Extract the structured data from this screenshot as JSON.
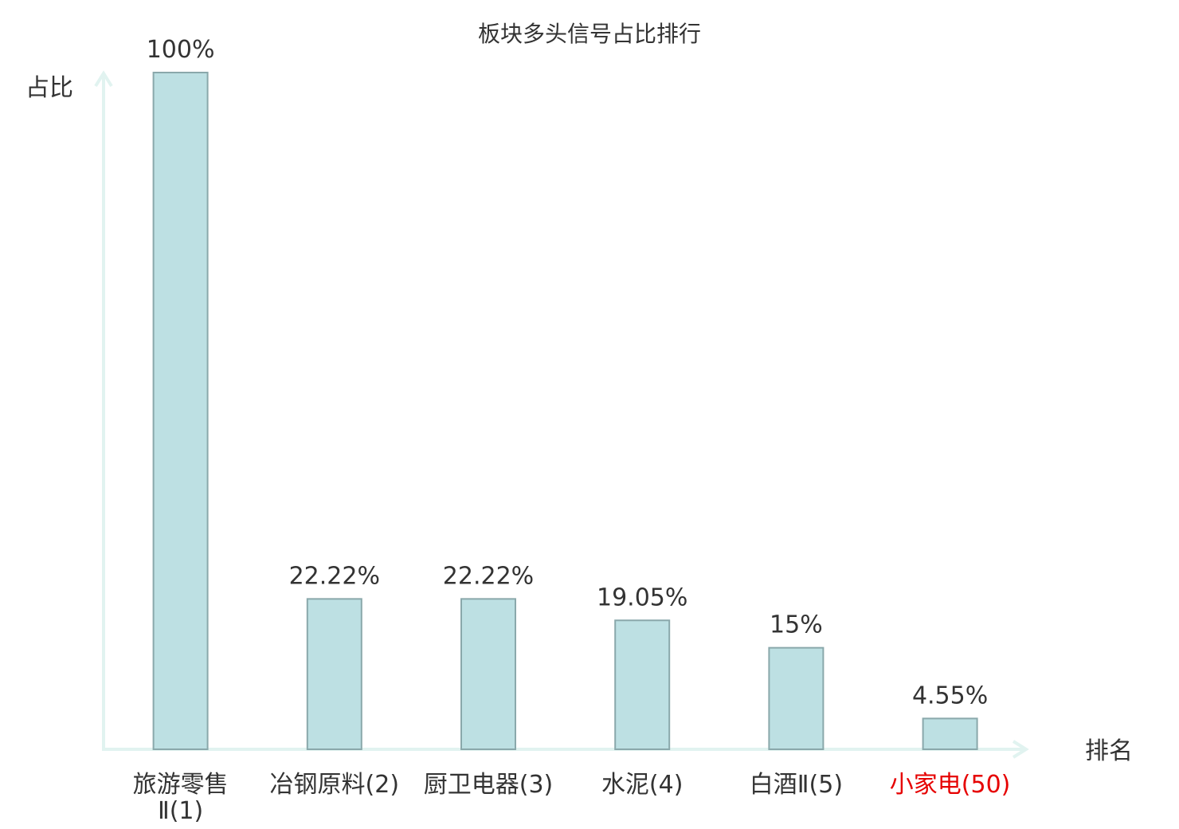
{
  "chart_data": {
    "type": "bar",
    "title": "板块多头信号占比排行",
    "ylabel": "占比",
    "xlabel": "排名",
    "ylim": [
      0,
      100
    ],
    "grid": false,
    "categories": [
      [
        "旅游零售",
        "Ⅱ(1)"
      ],
      [
        "冶钢原料(2)"
      ],
      [
        "厨卫电器(3)"
      ],
      [
        "水泥(4)"
      ],
      [
        "白酒Ⅱ(5)"
      ],
      [
        "小家电(50)"
      ]
    ],
    "values": [
      100,
      22.22,
      22.22,
      19.05,
      15,
      4.55
    ],
    "value_labels": [
      "100%",
      "22.22%",
      "22.22%",
      "19.05%",
      "15%",
      "4.55%"
    ],
    "highlight_index": 5
  },
  "colors": {
    "bar_fill": "#bde0e3",
    "bar_stroke": "#8aa8ab",
    "axis": "#e1f3f0",
    "text": "#333333",
    "highlight_text": "#e60000"
  }
}
